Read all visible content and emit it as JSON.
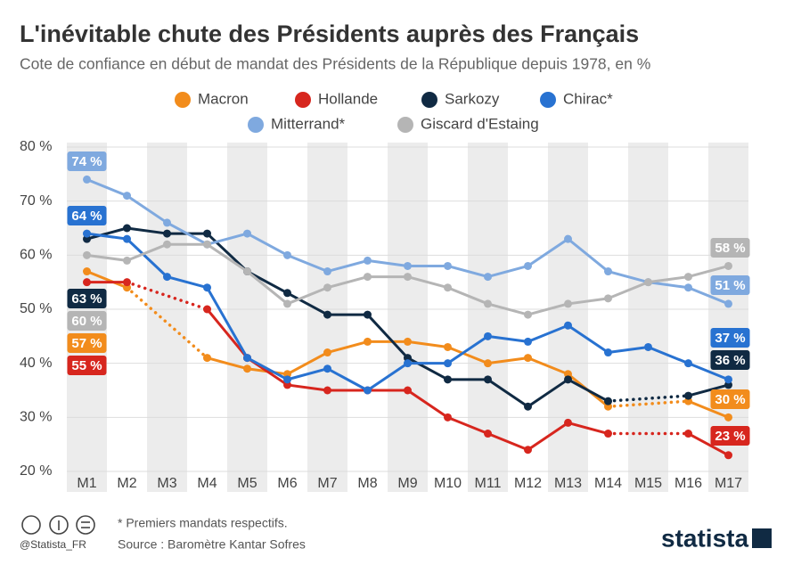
{
  "chart_data": {
    "type": "line",
    "title": "L'inévitable chute des Présidents auprès des Français",
    "subtitle": "Cote de confiance en début de mandat des Présidents de la République depuis 1978, en %",
    "categories": [
      "M1",
      "M2",
      "M3",
      "M4",
      "M5",
      "M6",
      "M7",
      "M8",
      "M9",
      "M10",
      "M11",
      "M12",
      "M13",
      "M14",
      "M15",
      "M16",
      "M17"
    ],
    "ylim": [
      20,
      80
    ],
    "yticks": [
      {
        "value": 20,
        "label": "20 %"
      },
      {
        "value": 30,
        "label": "30 %"
      },
      {
        "value": 40,
        "label": "40 %"
      },
      {
        "value": 50,
        "label": "50 %"
      },
      {
        "value": 60,
        "label": "60 %"
      },
      {
        "value": 70,
        "label": "70 %"
      },
      {
        "value": 80,
        "label": "80 %"
      }
    ],
    "gap_line": "dotted",
    "series": [
      {
        "name": "Macron",
        "color": "#f28c1c",
        "values": [
          57,
          54,
          null,
          41,
          39,
          38,
          42,
          44,
          44,
          43,
          40,
          41,
          38,
          32,
          null,
          33,
          30
        ],
        "value_labels": [
          "57 %",
          null,
          null,
          null,
          null,
          null,
          null,
          null,
          null,
          null,
          null,
          null,
          null,
          null,
          null,
          null,
          "30 %"
        ]
      },
      {
        "name": "Hollande",
        "color": "#d7261e",
        "values": [
          55,
          55,
          null,
          50,
          41,
          36,
          35,
          35,
          35,
          30,
          27,
          24,
          29,
          27,
          null,
          27,
          23
        ],
        "value_labels": [
          "55 %",
          null,
          null,
          null,
          null,
          null,
          null,
          null,
          null,
          null,
          null,
          null,
          null,
          null,
          null,
          null,
          "23 %"
        ]
      },
      {
        "name": "Sarkozy",
        "color": "#102a43",
        "values": [
          63,
          65,
          64,
          64,
          57,
          53,
          49,
          49,
          41,
          37,
          37,
          32,
          37,
          33,
          null,
          34,
          36
        ],
        "value_labels": [
          "63 %",
          null,
          null,
          null,
          null,
          null,
          null,
          null,
          null,
          null,
          null,
          null,
          null,
          null,
          null,
          null,
          "36 %"
        ]
      },
      {
        "name": "Chirac*",
        "color": "#2872d1",
        "values": [
          64,
          63,
          56,
          54,
          41,
          37,
          39,
          35,
          40,
          40,
          45,
          44,
          47,
          42,
          43,
          40,
          37
        ],
        "value_labels": [
          "64 %",
          null,
          null,
          null,
          null,
          null,
          null,
          null,
          null,
          null,
          null,
          null,
          null,
          null,
          null,
          null,
          "37 %"
        ]
      },
      {
        "name": "Mitterrand*",
        "color": "#7fa9df",
        "values": [
          74,
          71,
          66,
          62,
          64,
          60,
          57,
          59,
          58,
          58,
          56,
          58,
          63,
          57,
          55,
          54,
          51
        ],
        "value_labels": [
          "74 %",
          null,
          null,
          null,
          null,
          null,
          null,
          null,
          null,
          null,
          null,
          null,
          null,
          null,
          null,
          null,
          "51 %"
        ]
      },
      {
        "name": "Giscard d'Estaing",
        "color": "#b5b5b5",
        "values": [
          60,
          59,
          62,
          62,
          57,
          51,
          54,
          56,
          56,
          54,
          51,
          49,
          51,
          52,
          55,
          56,
          58
        ],
        "value_labels": [
          "60 %",
          null,
          null,
          null,
          null,
          null,
          null,
          null,
          null,
          null,
          null,
          null,
          null,
          null,
          null,
          null,
          "58 %"
        ]
      }
    ],
    "footnote": "* Premiers mandats respectifs.",
    "source": "Source : Baromètre Kantar Sofres",
    "credit": "@Statista_FR",
    "brand": "statista"
  }
}
